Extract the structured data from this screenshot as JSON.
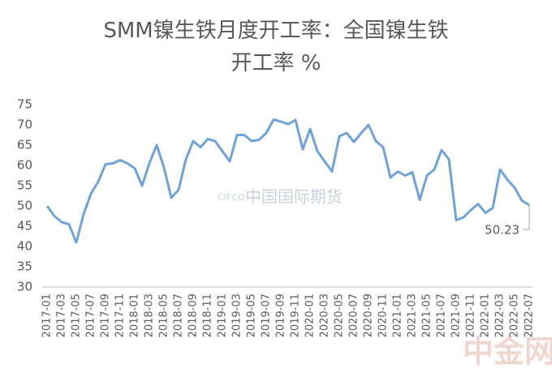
{
  "chart_data": {
    "type": "line",
    "title": "SMM镍生铁月度开工率：全国镍生铁开工率 %",
    "categories": [
      "2017-01",
      null,
      "2017-03",
      null,
      "2017-05",
      null,
      "2017-07",
      null,
      "2017-09",
      null,
      "2017-11",
      null,
      "2018-01",
      null,
      "2018-03",
      null,
      "2018-05",
      null,
      "2018-07",
      null,
      "2018-09",
      null,
      "2018-11",
      null,
      "2019-01",
      null,
      "2019-03",
      null,
      "2019-05",
      null,
      "2019-07",
      null,
      "2019-09",
      null,
      "2019-11",
      null,
      "2020-01",
      null,
      "2020-03",
      null,
      "2020-05",
      null,
      "2020-07",
      null,
      "2020-09",
      null,
      "2020-11",
      null,
      "2021-01",
      null,
      "2021-03",
      null,
      "2021-05",
      null,
      "2021-07",
      null,
      "2021-09",
      null,
      "2021-11",
      null,
      "2022-01",
      null,
      "2022-03",
      null,
      "2022-05",
      null,
      "2022-07"
    ],
    "series": [
      {
        "name": "全国镍生铁开工率",
        "color": "#6fa3d8",
        "values": [
          50,
          47.5,
          46,
          45.5,
          41,
          48,
          53,
          56,
          60.3,
          60.5,
          61.3,
          60.5,
          59.3,
          55,
          60.5,
          65,
          59.5,
          52,
          54,
          61.5,
          66,
          64.5,
          66.5,
          66,
          63.5,
          61,
          67.5,
          67.5,
          66,
          66.3,
          68,
          71.3,
          70.8,
          70.2,
          71.2,
          64,
          69,
          63.5,
          61,
          58.5,
          67.2,
          68,
          65.8,
          68,
          70,
          66,
          64.5,
          57,
          58.5,
          57.5,
          58.3,
          51.5,
          57.5,
          59,
          63.8,
          61.5,
          46.5,
          47.2,
          49,
          50.5,
          48.3,
          49.5,
          59,
          56.5,
          54.5,
          51.3,
          50.23
        ]
      }
    ],
    "annotation": {
      "label": "50.23",
      "value": 50.23
    },
    "ylim": [
      30,
      75
    ],
    "yticks": [
      30,
      35,
      40,
      45,
      50,
      55,
      60,
      65,
      70,
      75
    ],
    "grid": false,
    "watermarks": [
      "CIFCO",
      "中国国际期货",
      "中金网"
    ]
  }
}
